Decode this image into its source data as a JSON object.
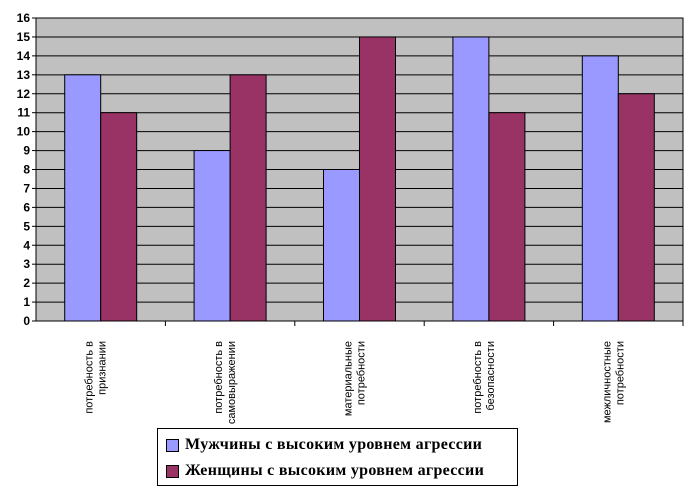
{
  "chart_data": {
    "type": "bar",
    "categories": [
      [
        "потребность в",
        "признании"
      ],
      [
        "потребность в",
        "самовыражении"
      ],
      [
        "материальные",
        "потребности"
      ],
      [
        "потребность в",
        "безопасности"
      ],
      [
        "межличностные",
        "потребности"
      ]
    ],
    "series": [
      {
        "name": "Мужчины с высоким уровнем агрессии",
        "color": "#9999ff",
        "values": [
          13,
          9,
          8,
          15,
          14
        ]
      },
      {
        "name": "Женщины с высоким уровнем агрессии",
        "color": "#993366",
        "values": [
          11,
          13,
          15,
          11,
          12
        ]
      }
    ],
    "ylim": [
      0,
      16
    ],
    "yticks": [
      "0",
      "1",
      "2",
      "3",
      "4",
      "5",
      "6",
      "7",
      "8",
      "9",
      "10",
      "11",
      "12",
      "13",
      "14",
      "15",
      "16"
    ],
    "grid": true,
    "plot_background": "#c0c0c0",
    "legend_position": "bottom"
  }
}
